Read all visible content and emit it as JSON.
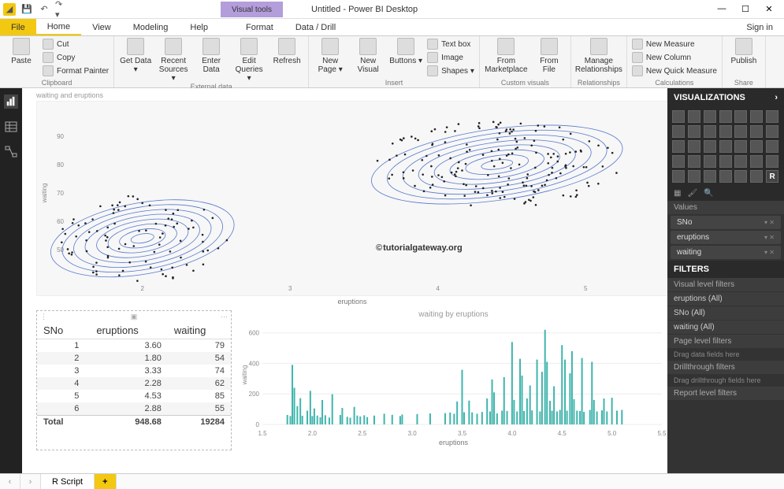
{
  "titlebar": {
    "visual_tools": "Visual tools",
    "title": "Untitled - Power BI Desktop",
    "window_controls": {
      "min": "—",
      "max": "☐",
      "close": "✕"
    }
  },
  "tabs": {
    "file": "File",
    "home": "Home",
    "view": "View",
    "modeling": "Modeling",
    "help": "Help",
    "format": "Format",
    "datadrill": "Data / Drill",
    "signin": "Sign in"
  },
  "ribbon": {
    "clipboard": {
      "paste": "Paste",
      "cut": "Cut",
      "copy": "Copy",
      "format_painter": "Format Painter",
      "label": "Clipboard"
    },
    "external": {
      "get_data": "Get Data ▾",
      "recent": "Recent Sources ▾",
      "enter": "Enter Data",
      "edit_q": "Edit Queries ▾",
      "refresh": "Refresh",
      "label": "External data"
    },
    "insert": {
      "new_page": "New Page ▾",
      "new_visual": "New Visual",
      "buttons": "Buttons ▾",
      "text_box": "Text box",
      "image": "Image",
      "shapes": "Shapes ▾",
      "label": "Insert"
    },
    "custom": {
      "marketplace": "From Marketplace",
      "file": "From File",
      "label": "Custom visuals"
    },
    "relationships": {
      "manage": "Manage Relationships",
      "label": "Relationships"
    },
    "calculations": {
      "measure": "New Measure",
      "column": "New Column",
      "quick": "New Quick Measure",
      "label": "Calculations"
    },
    "share": {
      "publish": "Publish",
      "label": "Share"
    }
  },
  "main_chart": {
    "title": "waiting and eruptions",
    "xlabel": "eruptions",
    "ylabel": "waiting",
    "xlim": [
      1.5,
      5.5
    ],
    "ylim": [
      40,
      100
    ],
    "xticks": [
      2,
      3,
      4,
      5
    ],
    "yticks": [
      50,
      60,
      70,
      80,
      90
    ],
    "background": "#f7f7f7",
    "contour_color": "#5577cc",
    "point_color": "#222222",
    "watermark": "tutorialgateway.org",
    "cluster1_center": [
      2.0,
      54
    ],
    "cluster2_center": [
      4.4,
      80
    ]
  },
  "table": {
    "columns": [
      "SNo",
      "eruptions",
      "waiting"
    ],
    "rows": [
      [
        "1",
        "3.60",
        "79"
      ],
      [
        "2",
        "1.80",
        "54"
      ],
      [
        "3",
        "3.33",
        "74"
      ],
      [
        "4",
        "2.28",
        "62"
      ],
      [
        "5",
        "4.53",
        "85"
      ],
      [
        "6",
        "2.88",
        "55"
      ]
    ],
    "footer": [
      "Total",
      "948.68",
      "19284"
    ]
  },
  "bar_chart": {
    "title": "waiting by eruptions",
    "xlabel": "eruptions",
    "ylabel": "waiting",
    "xlim": [
      1.5,
      5.5
    ],
    "ylim": [
      0,
      650
    ],
    "xticks": [
      1.5,
      2.0,
      2.5,
      3.0,
      3.5,
      4.0,
      4.5,
      5.0,
      5.5
    ],
    "yticks": [
      0,
      200,
      400,
      600
    ],
    "bar_color": "#3fb5ac",
    "bars": [
      [
        1.75,
        62
      ],
      [
        1.78,
        55
      ],
      [
        1.8,
        390
      ],
      [
        1.82,
        240
      ],
      [
        1.85,
        120
      ],
      [
        1.88,
        172
      ],
      [
        1.9,
        57
      ],
      [
        1.95,
        90
      ],
      [
        1.98,
        220
      ],
      [
        2.0,
        55
      ],
      [
        2.02,
        105
      ],
      [
        2.05,
        58
      ],
      [
        2.08,
        47
      ],
      [
        2.1,
        160
      ],
      [
        2.13,
        60
      ],
      [
        2.17,
        45
      ],
      [
        2.2,
        198
      ],
      [
        2.28,
        62
      ],
      [
        2.3,
        108
      ],
      [
        2.35,
        50
      ],
      [
        2.38,
        44
      ],
      [
        2.42,
        115
      ],
      [
        2.45,
        58
      ],
      [
        2.48,
        52
      ],
      [
        2.52,
        60
      ],
      [
        2.55,
        48
      ],
      [
        2.62,
        58
      ],
      [
        2.72,
        70
      ],
      [
        2.8,
        63
      ],
      [
        2.88,
        55
      ],
      [
        2.9,
        65
      ],
      [
        3.05,
        68
      ],
      [
        3.18,
        72
      ],
      [
        3.33,
        74
      ],
      [
        3.38,
        78
      ],
      [
        3.42,
        70
      ],
      [
        3.45,
        150
      ],
      [
        3.5,
        358
      ],
      [
        3.52,
        80
      ],
      [
        3.57,
        156
      ],
      [
        3.6,
        79
      ],
      [
        3.65,
        70
      ],
      [
        3.7,
        82
      ],
      [
        3.75,
        170
      ],
      [
        3.78,
        85
      ],
      [
        3.8,
        295
      ],
      [
        3.82,
        210
      ],
      [
        3.85,
        72
      ],
      [
        3.9,
        90
      ],
      [
        3.92,
        310
      ],
      [
        3.95,
        88
      ],
      [
        4.0,
        540
      ],
      [
        4.02,
        160
      ],
      [
        4.05,
        85
      ],
      [
        4.08,
        430
      ],
      [
        4.1,
        320
      ],
      [
        4.12,
        88
      ],
      [
        4.15,
        170
      ],
      [
        4.18,
        255
      ],
      [
        4.2,
        92
      ],
      [
        4.25,
        425
      ],
      [
        4.28,
        85
      ],
      [
        4.3,
        345
      ],
      [
        4.33,
        620
      ],
      [
        4.35,
        410
      ],
      [
        4.38,
        155
      ],
      [
        4.4,
        90
      ],
      [
        4.42,
        250
      ],
      [
        4.45,
        85
      ],
      [
        4.48,
        95
      ],
      [
        4.5,
        520
      ],
      [
        4.53,
        425
      ],
      [
        4.55,
        90
      ],
      [
        4.58,
        335
      ],
      [
        4.6,
        480
      ],
      [
        4.62,
        165
      ],
      [
        4.65,
        90
      ],
      [
        4.68,
        88
      ],
      [
        4.7,
        435
      ],
      [
        4.72,
        82
      ],
      [
        4.78,
        95
      ],
      [
        4.8,
        410
      ],
      [
        4.82,
        160
      ],
      [
        4.85,
        85
      ],
      [
        4.9,
        92
      ],
      [
        4.92,
        170
      ],
      [
        4.95,
        85
      ],
      [
        5.0,
        175
      ],
      [
        5.05,
        90
      ],
      [
        5.1,
        95
      ]
    ]
  },
  "viz_panel": {
    "header": "VISUALIZATIONS",
    "values": "Values",
    "fields": [
      "SNo",
      "eruptions",
      "waiting"
    ],
    "filters": "FILTERS",
    "vlf": "Visual level filters",
    "vlf_items": [
      "eruptions  (All)",
      "SNo  (All)",
      "waiting  (All)"
    ],
    "plf": "Page level filters",
    "plf_drag": "Drag data fields here",
    "drill": "Drillthrough filters",
    "drill_drag": "Drag drillthrough fields here",
    "rlf": "Report level filters"
  },
  "bottom": {
    "nav_left": "‹",
    "nav_right": "›",
    "tab1": "R Script",
    "add": "+"
  }
}
